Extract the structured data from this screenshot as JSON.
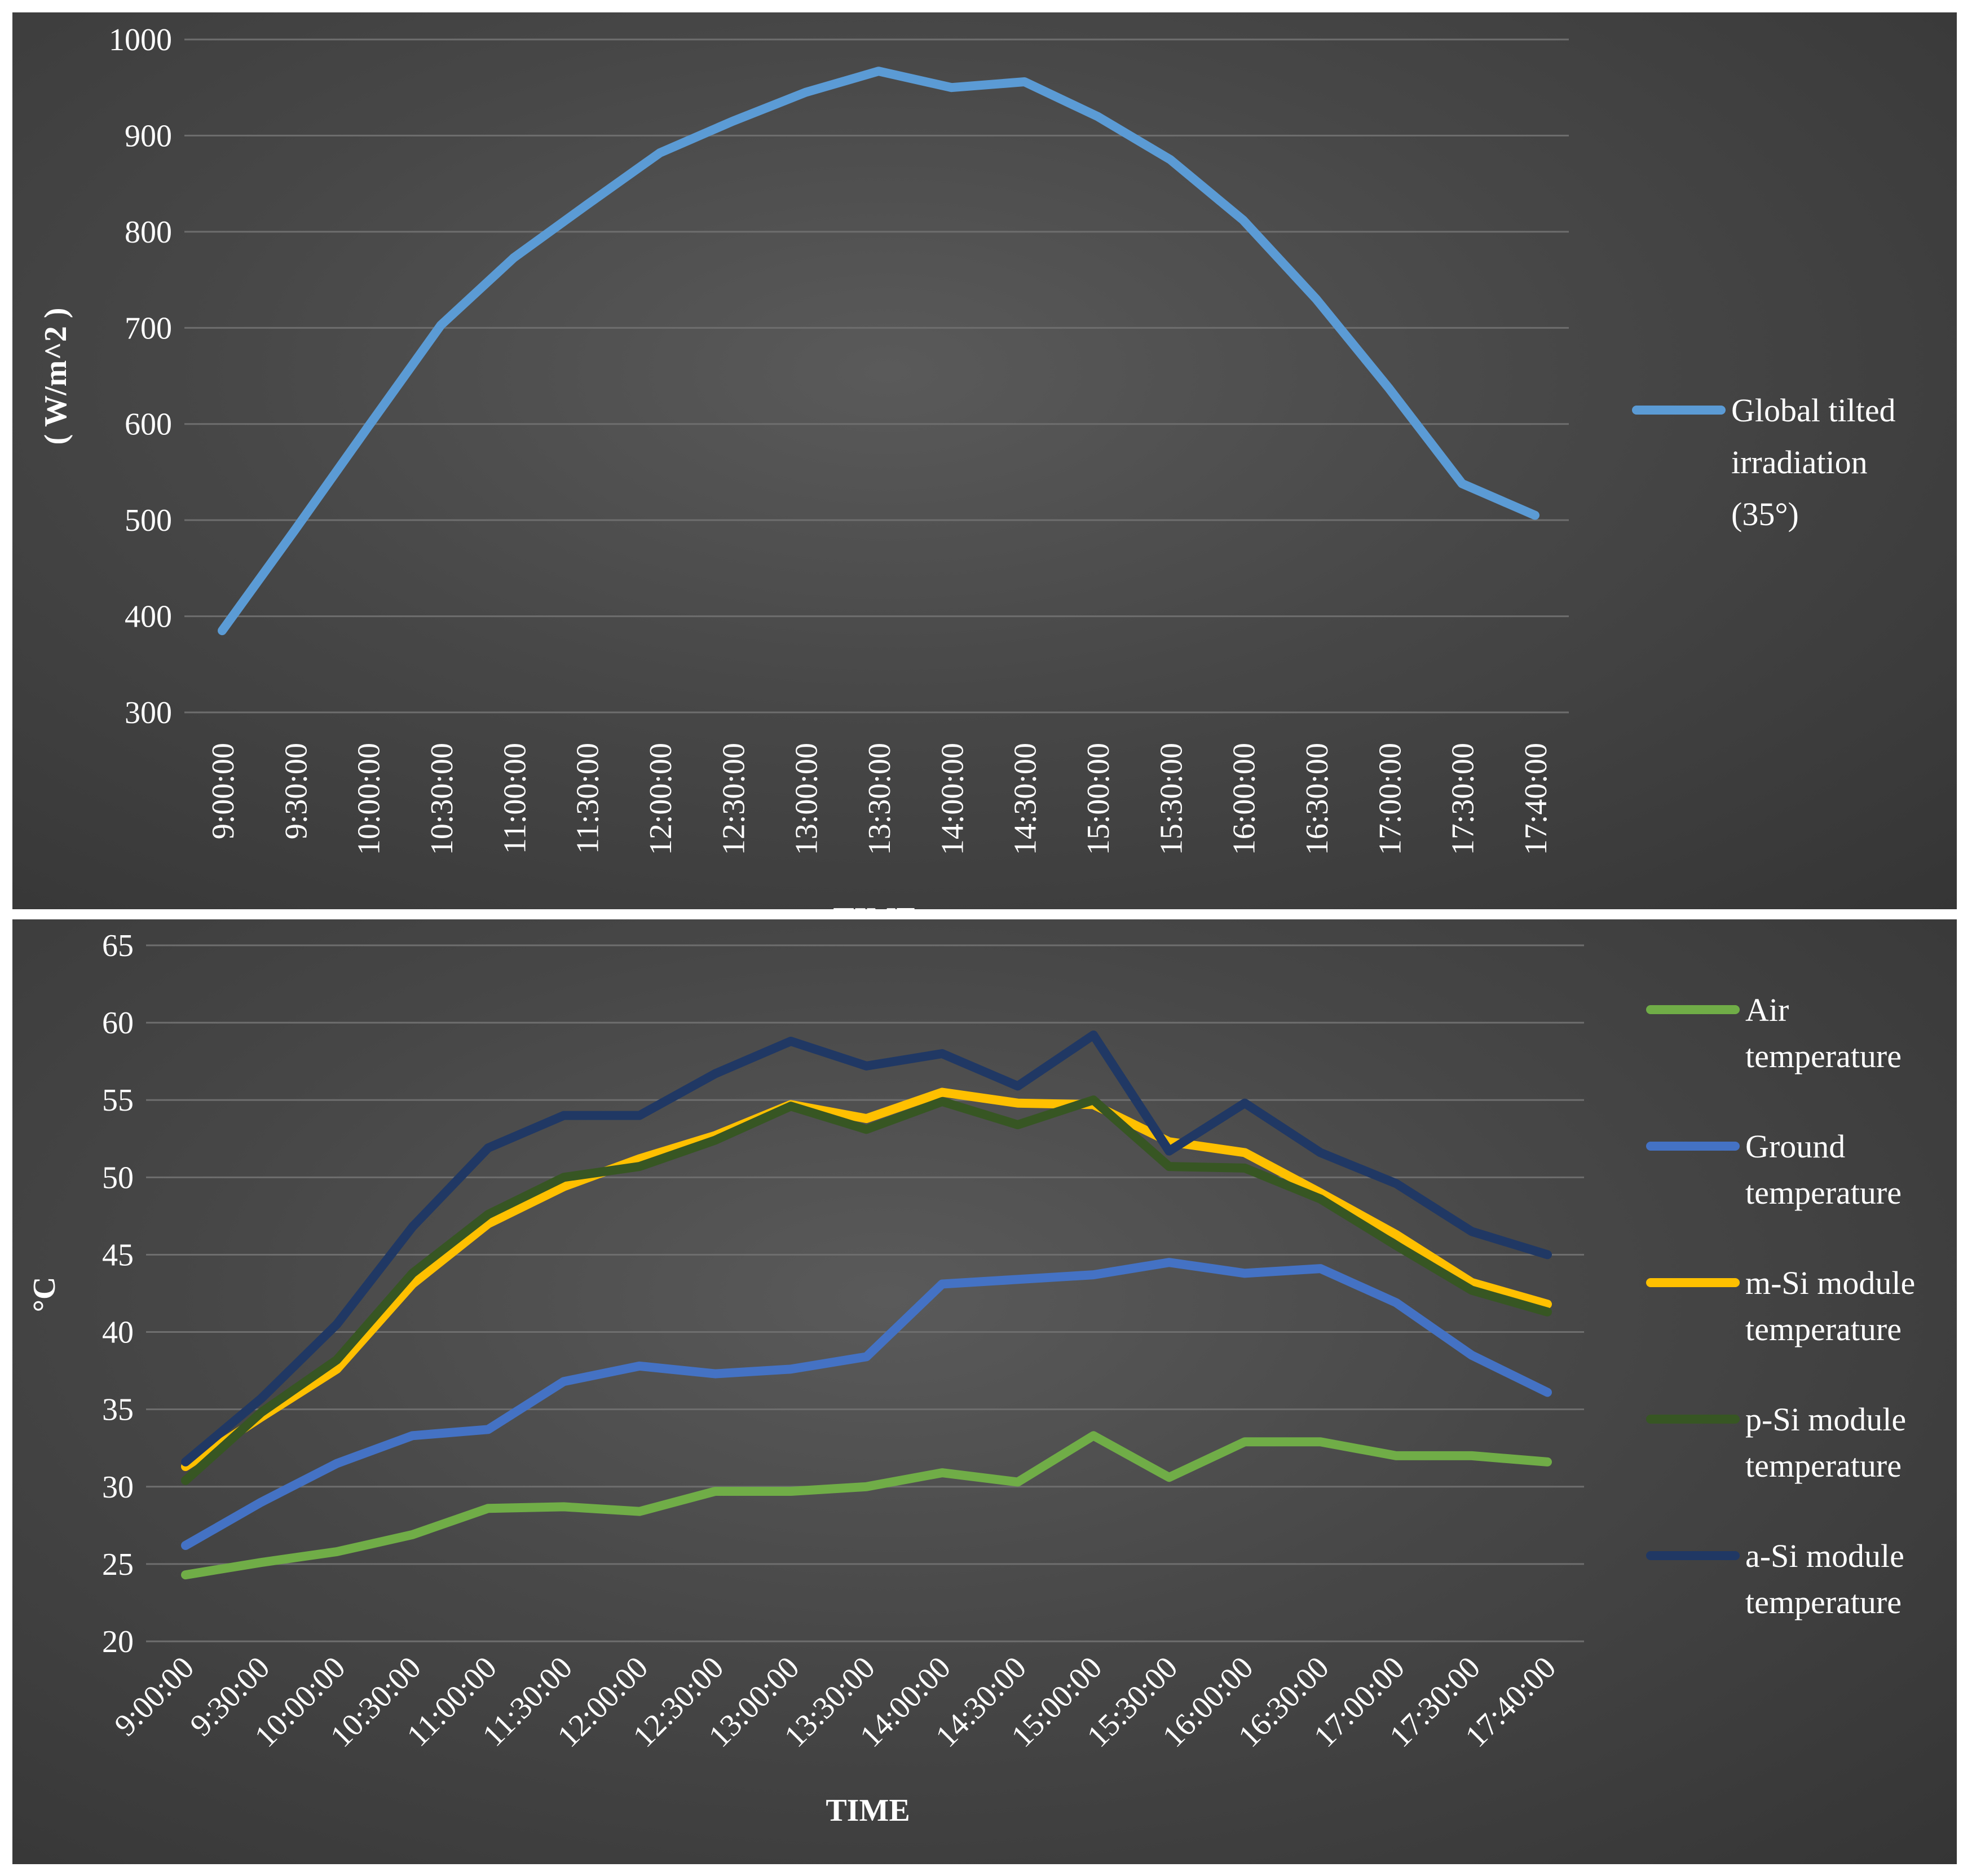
{
  "chart_data": [
    {
      "type": "line",
      "title": "",
      "xlabel": "TIME",
      "ylabel": "( W/m^2 )",
      "ylim": [
        300,
        1000
      ],
      "yticks": [
        300,
        400,
        500,
        600,
        700,
        800,
        900,
        1000
      ],
      "categories": [
        "9:00:00",
        "9:30:00",
        "10:00:00",
        "10:30:00",
        "11:00:00",
        "11:30:00",
        "12:00:00",
        "12:30:00",
        "13:00:00",
        "13:30:00",
        "14:00:00",
        "14:30:00",
        "15:00:00",
        "15:30:00",
        "16:00:00",
        "16:30:00",
        "17:00:00",
        "17:30:00",
        "17:40:00"
      ],
      "legend_position": "right",
      "series": [
        {
          "name_lines": [
            "Global tilted",
            "irradiation",
            "(35°)"
          ],
          "color": "#5b9bd5",
          "values": [
            385,
            490,
            597,
            703,
            773,
            828,
            882,
            915,
            945,
            967,
            950,
            956,
            920,
            875,
            812,
            730,
            637,
            538,
            505
          ]
        }
      ]
    },
    {
      "type": "line",
      "title": "",
      "xlabel": "TIME",
      "ylabel": "°C",
      "ylim": [
        20,
        65
      ],
      "yticks": [
        20,
        25,
        30,
        35,
        40,
        45,
        50,
        55,
        60,
        65
      ],
      "categories": [
        "9:00:00",
        "9:30:00",
        "10:00:00",
        "10:30:00",
        "11:00:00",
        "11:30:00",
        "12:00:00",
        "12:30:00",
        "13:00:00",
        "13:30:00",
        "14:00:00",
        "14:30:00",
        "15:00:00",
        "15:30:00",
        "16:00:00",
        "16:30:00",
        "17:00:00",
        "17:30:00",
        "17:40:00"
      ],
      "legend_position": "right",
      "series": [
        {
          "name_lines": [
            "Air",
            "temperature"
          ],
          "color": "#70ad47",
          "values": [
            24.3,
            25.1,
            25.8,
            26.9,
            28.6,
            28.7,
            28.4,
            29.7,
            29.7,
            30.0,
            30.9,
            30.3,
            33.3,
            30.6,
            32.9,
            32.9,
            32.0,
            32.0,
            31.6
          ]
        },
        {
          "name_lines": [
            "Ground",
            "temperature"
          ],
          "color": "#4472c4",
          "values": [
            26.2,
            29.0,
            31.5,
            33.3,
            33.7,
            36.8,
            37.8,
            37.3,
            37.6,
            38.4,
            43.1,
            43.4,
            43.7,
            44.5,
            43.8,
            44.1,
            41.9,
            38.5,
            36.1
          ]
        },
        {
          "name_lines": [
            "m-Si module",
            "temperature"
          ],
          "color": "#ffc000",
          "values": [
            31.3,
            34.5,
            37.6,
            43.1,
            47.0,
            49.4,
            51.2,
            52.7,
            54.7,
            53.8,
            55.5,
            54.8,
            54.7,
            52.3,
            51.6,
            49.0,
            46.3,
            43.2,
            41.8
          ]
        },
        {
          "name_lines": [
            "p-Si module",
            "temperature"
          ],
          "color": "#375623",
          "values": [
            30.4,
            34.8,
            38.2,
            43.8,
            47.6,
            50.0,
            50.7,
            52.4,
            54.6,
            53.1,
            54.9,
            53.4,
            55.0,
            50.7,
            50.6,
            48.6,
            45.6,
            42.7,
            41.3
          ]
        },
        {
          "name_lines": [
            "a-Si module",
            "temperature"
          ],
          "color": "#203864",
          "values": [
            31.6,
            35.7,
            40.5,
            46.8,
            51.9,
            54.0,
            54.0,
            56.7,
            58.8,
            57.2,
            58.0,
            55.9,
            59.2,
            51.7,
            54.8,
            51.6,
            49.6,
            46.5,
            45.0
          ]
        }
      ]
    }
  ]
}
